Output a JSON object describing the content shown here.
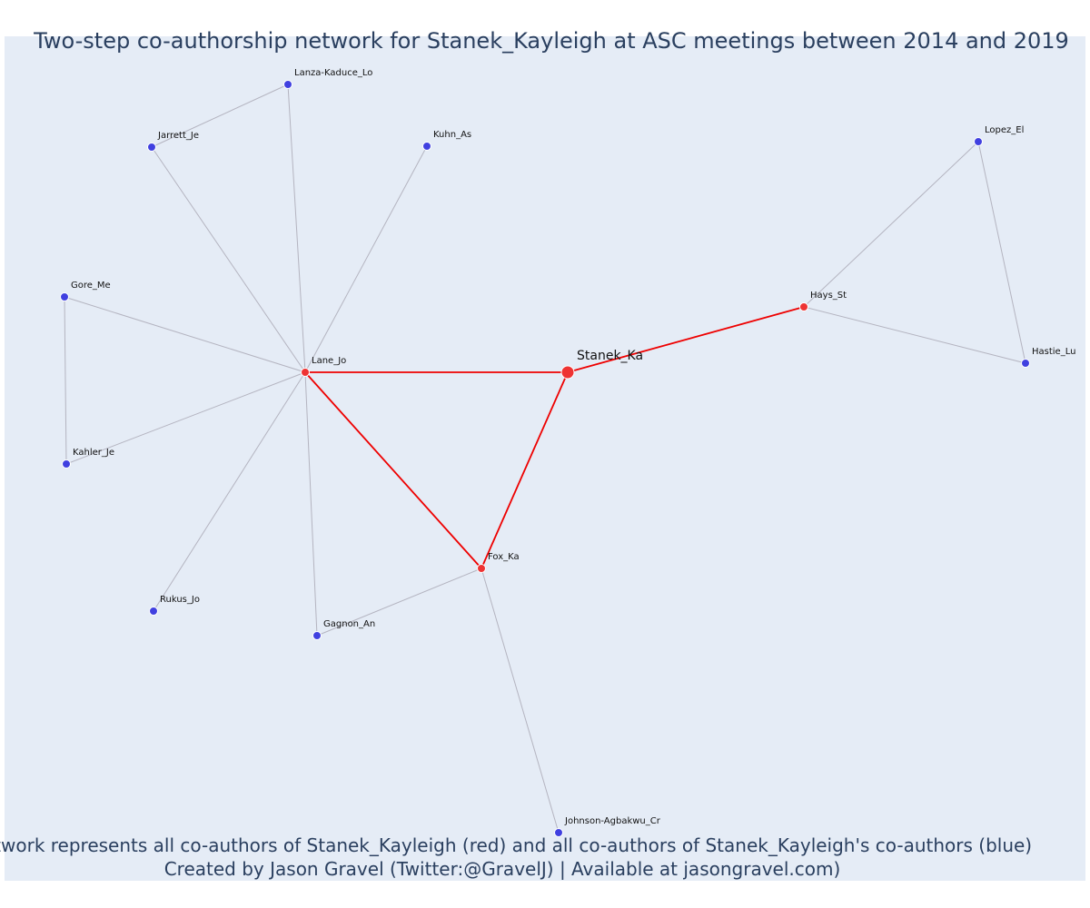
{
  "title": "Two-step co-authorship network for Stanek_Kayleigh at ASC meetings between 2014 and 2019",
  "footer": {
    "line1": "Network represents all co-authors of Stanek_Kayleigh (red) and all co-authors of Stanek_Kayleigh's co-authors (blue)",
    "line2": "Created by Jason Gravel (Twitter:@GravelJ) | Available at jasongravel.com)"
  },
  "colors": {
    "ego": "#ee3333",
    "coauthor": "#ee3333",
    "second_degree": "#4040e0",
    "red_edge": "#ee0000",
    "gray_edge": "#b4b4c0",
    "panel_background": "#e5ecf6",
    "title_text": "#2a3f5f"
  },
  "nodes": [
    {
      "id": "Stanek_Ka",
      "label": "Stanek_Ka",
      "group": "ego"
    },
    {
      "id": "Lane_Jo",
      "label": "Lane_Jo",
      "group": "coauthor"
    },
    {
      "id": "Fox_Ka",
      "label": "Fox_Ka",
      "group": "coauthor"
    },
    {
      "id": "Hays_St",
      "label": "Hays_St",
      "group": "coauthor"
    },
    {
      "id": "Lanza-Kaduce_Lo",
      "label": "Lanza-Kaduce_Lo",
      "group": "second_degree"
    },
    {
      "id": "Jarrett_Je",
      "label": "Jarrett_Je",
      "group": "second_degree"
    },
    {
      "id": "Kuhn_As",
      "label": "Kuhn_As",
      "group": "second_degree"
    },
    {
      "id": "Gore_Me",
      "label": "Gore_Me",
      "group": "second_degree"
    },
    {
      "id": "Kahler_Je",
      "label": "Kahler_Je",
      "group": "second_degree"
    },
    {
      "id": "Rukus_Jo",
      "label": "Rukus_Jo",
      "group": "second_degree"
    },
    {
      "id": "Gagnon_An",
      "label": "Gagnon_An",
      "group": "second_degree"
    },
    {
      "id": "Johnson-Agbakwu_Cr",
      "label": "Johnson-Agbakwu_Cr",
      "group": "second_degree"
    },
    {
      "id": "Lopez_El",
      "label": "Lopez_El",
      "group": "second_degree"
    },
    {
      "id": "Hastie_Lu",
      "label": "Hastie_Lu",
      "group": "second_degree"
    }
  ],
  "edges": [
    {
      "source": "Lane_Jo",
      "target": "Stanek_Ka",
      "type": "red"
    },
    {
      "source": "Lane_Jo",
      "target": "Fox_Ka",
      "type": "red"
    },
    {
      "source": "Fox_Ka",
      "target": "Stanek_Ka",
      "type": "red"
    },
    {
      "source": "Stanek_Ka",
      "target": "Hays_St",
      "type": "red"
    },
    {
      "source": "Lane_Jo",
      "target": "Lanza-Kaduce_Lo",
      "type": "gray"
    },
    {
      "source": "Lane_Jo",
      "target": "Jarrett_Je",
      "type": "gray"
    },
    {
      "source": "Lane_Jo",
      "target": "Kuhn_As",
      "type": "gray"
    },
    {
      "source": "Lane_Jo",
      "target": "Gore_Me",
      "type": "gray"
    },
    {
      "source": "Lane_Jo",
      "target": "Kahler_Je",
      "type": "gray"
    },
    {
      "source": "Lane_Jo",
      "target": "Rukus_Jo",
      "type": "gray"
    },
    {
      "source": "Lane_Jo",
      "target": "Gagnon_An",
      "type": "gray"
    },
    {
      "source": "Jarrett_Je",
      "target": "Lanza-Kaduce_Lo",
      "type": "gray"
    },
    {
      "source": "Gore_Me",
      "target": "Kahler_Je",
      "type": "gray"
    },
    {
      "source": "Fox_Ka",
      "target": "Gagnon_An",
      "type": "gray"
    },
    {
      "source": "Fox_Ka",
      "target": "Johnson-Agbakwu_Cr",
      "type": "gray"
    },
    {
      "source": "Hays_St",
      "target": "Lopez_El",
      "type": "gray"
    },
    {
      "source": "Hays_St",
      "target": "Hastie_Lu",
      "type": "gray"
    },
    {
      "source": "Lopez_El",
      "target": "Hastie_Lu",
      "type": "gray"
    }
  ]
}
